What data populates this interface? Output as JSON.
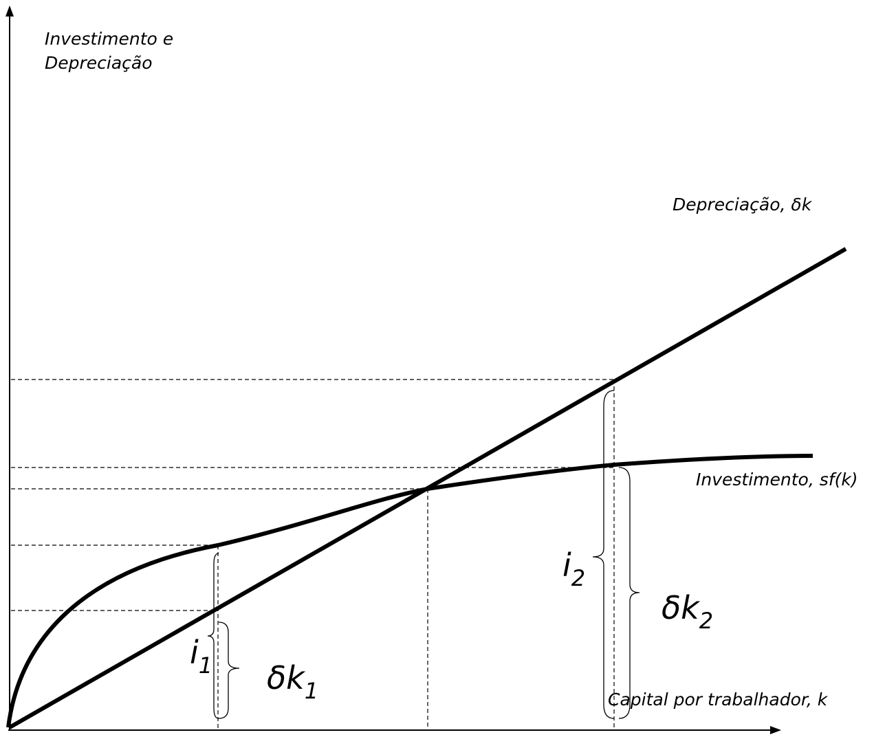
{
  "axis_labels": {
    "y": [
      "Investimento e",
      "Depreciação"
    ],
    "x": "Capital por trabalhador, k"
  },
  "curves": {
    "depreciation": "Depreciação, δk",
    "investment": "Investimento, sf(k)"
  },
  "braces": [
    {
      "base": "i",
      "sub": "1"
    },
    {
      "base": "δk",
      "sub": "1"
    },
    {
      "base": "i",
      "sub": "2"
    },
    {
      "base": "δk",
      "sub": "2"
    }
  ]
}
